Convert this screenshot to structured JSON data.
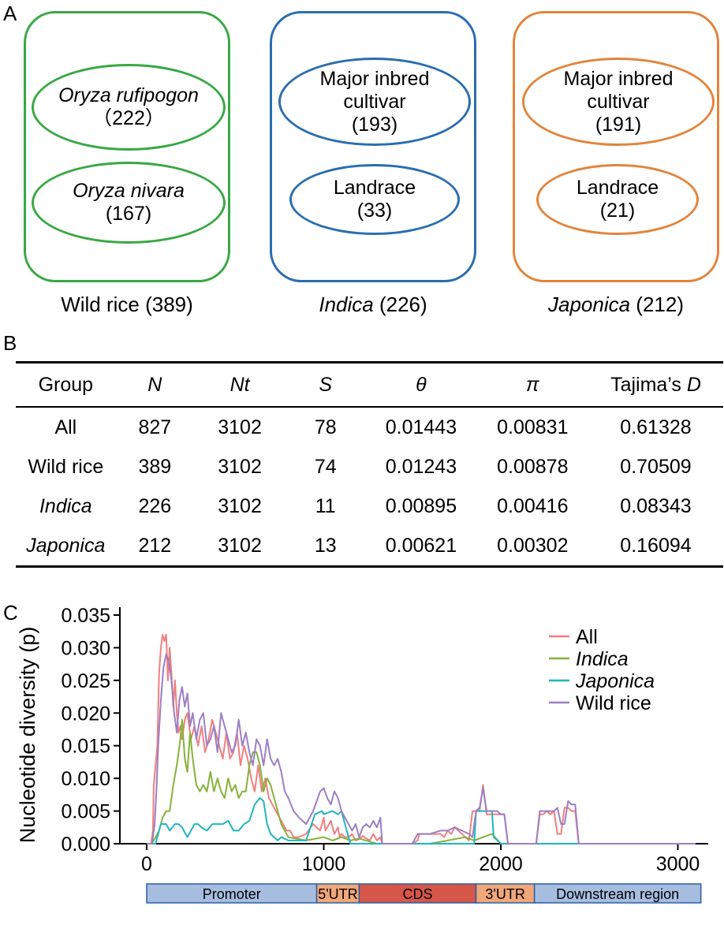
{
  "panel_a": {
    "letter": "A",
    "groups": [
      {
        "label": "Wild rice (389)",
        "label_italic": "",
        "label_rest": "Wild rice (389)",
        "color": "#3aa845",
        "ovals": [
          {
            "line1": "Oryza rufipogon",
            "line1_italic": true,
            "line2": "（222）",
            "line3": ""
          },
          {
            "line1": "Oryza nivara",
            "line1_italic": true,
            "line2": "(167)",
            "line3": ""
          }
        ]
      },
      {
        "label": "Indica (226)",
        "label_italic": "Indica",
        "label_rest": " (226)",
        "color": "#2a6db0",
        "ovals": [
          {
            "line1": "Major inbred",
            "line1_italic": false,
            "line2": "cultivar",
            "line3": "(193)"
          },
          {
            "line1": "Landrace",
            "line1_italic": false,
            "line2": "(33)",
            "line3": ""
          }
        ]
      },
      {
        "label": "Japonica (212)",
        "label_italic": "Japonica",
        "label_rest": " (212)",
        "color": "#e2843c",
        "ovals": [
          {
            "line1": "Major inbred",
            "line1_italic": false,
            "line2": "cultivar",
            "line3": "(191)"
          },
          {
            "line1": "Landrace",
            "line1_italic": false,
            "line2": "(21)",
            "line3": ""
          }
        ]
      }
    ]
  },
  "panel_b": {
    "letter": "B",
    "headers": [
      "Group",
      "N",
      "Nt",
      "S",
      "θ",
      "π",
      "Tajima’s D"
    ],
    "rows": [
      {
        "group": "All",
        "italic": false,
        "n": "827",
        "nt": "3102",
        "s": "78",
        "theta": "0.01443",
        "pi": "0.00831",
        "tajima": "0.61328"
      },
      {
        "group": "Wild rice",
        "italic": false,
        "n": "389",
        "nt": "3102",
        "s": "74",
        "theta": "0.01243",
        "pi": "0.00878",
        "tajima": "0.70509"
      },
      {
        "group": "Indica",
        "italic": true,
        "n": "226",
        "nt": "3102",
        "s": "11",
        "theta": "0.00895",
        "pi": "0.00416",
        "tajima": "0.08343"
      },
      {
        "group": "Japonica",
        "italic": true,
        "n": "212",
        "nt": "3102",
        "s": "13",
        "theta": "0.00621",
        "pi": "0.00302",
        "tajima": "0.16094"
      }
    ]
  },
  "chart_data": {
    "type": "line",
    "panel_letter": "C",
    "ylabel": "Nucleotide diversity (p)",
    "xlabel": "",
    "xlim": [
      0,
      3200
    ],
    "ylim": [
      0,
      0.035
    ],
    "xticks": [
      0,
      1000,
      2000,
      3000
    ],
    "yticks": [
      0.0,
      0.005,
      0.01,
      0.015,
      0.02,
      0.025,
      0.03,
      0.035
    ],
    "ytick_labels": [
      "0.000",
      "0.005",
      "0.010",
      "0.015",
      "0.020",
      "0.025",
      "0.030",
      "0.035"
    ],
    "grid": false,
    "legend_position": "top-right",
    "series": [
      {
        "name": "All",
        "italic": false,
        "color": "#f07f7f",
        "x": [
          0,
          25,
          35,
          40,
          50,
          60,
          70,
          80,
          90,
          100,
          110,
          120,
          130,
          140,
          150,
          160,
          170,
          180,
          190,
          200,
          215,
          230,
          250,
          270,
          290,
          310,
          330,
          350,
          370,
          390,
          410,
          430,
          450,
          470,
          490,
          510,
          530,
          550,
          570,
          590,
          610,
          630,
          650,
          670,
          690,
          710,
          730,
          750,
          770,
          790,
          810,
          830,
          860,
          900,
          940,
          980,
          1000,
          1010,
          1020,
          1040,
          1060,
          1080,
          1090,
          1100,
          1120,
          1140,
          1160,
          1180,
          1200,
          1220,
          1240,
          1260,
          1280,
          1300,
          1320,
          1330,
          1500,
          1530,
          1540,
          1600,
          1660,
          1680,
          1700,
          1720,
          1740,
          1760,
          1780,
          1800,
          1820,
          1840,
          1860,
          1880,
          1900,
          1920,
          1950,
          1980,
          2000,
          2020,
          2040,
          2200,
          2220,
          2240,
          2260,
          2280,
          2300,
          2320,
          2340,
          2360,
          2380,
          2400,
          2420,
          2440,
          3100
        ],
        "y": [
          0,
          0,
          0.002,
          0.009,
          0.012,
          0.015,
          0.026,
          0.03,
          0.032,
          0.031,
          0.032,
          0.025,
          0.03,
          0.026,
          0.021,
          0.025,
          0.02,
          0.017,
          0.018,
          0.016,
          0.019,
          0.02,
          0.016,
          0.018,
          0.015,
          0.018,
          0.014,
          0.016,
          0.019,
          0.017,
          0.015,
          0.013,
          0.017,
          0.013,
          0.014,
          0.017,
          0.012,
          0.015,
          0.013,
          0.01,
          0.008,
          0.012,
          0.008,
          0.01,
          0.007,
          0.006,
          0.005,
          0.004,
          0.003,
          0.002,
          0.002,
          0.001,
          0.001,
          0.0015,
          0.003,
          0.002,
          0.004,
          0.002,
          0.0025,
          0.0035,
          0.0015,
          0.0025,
          0.001,
          0.0015,
          0.001,
          0.001,
          0.0015,
          0.0005,
          0.0007,
          0.0012,
          0.0008,
          0.0005,
          0.0015,
          0.0005,
          0.001,
          0,
          0,
          0.0005,
          0.0015,
          0.0015,
          0.0015,
          0.001,
          0.002,
          0.0015,
          0.0025,
          0.002,
          0.0015,
          0.001,
          0.0005,
          0.005,
          0.005,
          0.005,
          0.009,
          0.0045,
          0.0045,
          0.0045,
          0.0045,
          0.0045,
          0,
          0,
          0.0045,
          0.0045,
          0.005,
          0.0045,
          0.005,
          0.0015,
          0.0015,
          0.0055,
          0.0055,
          0.005,
          0.005,
          0,
          0
        ]
      },
      {
        "name": "Indica",
        "italic": true,
        "color": "#86b23a",
        "x": [
          0,
          30,
          50,
          70,
          90,
          110,
          130,
          150,
          170,
          190,
          200,
          215,
          230,
          245,
          260,
          280,
          300,
          320,
          340,
          360,
          380,
          400,
          420,
          440,
          460,
          480,
          500,
          520,
          540,
          560,
          580,
          600,
          620,
          640,
          660,
          680,
          700,
          720,
          740,
          760,
          780,
          800,
          900,
          1000,
          1050,
          1100,
          1150,
          1200,
          1300,
          1600,
          1700,
          1800,
          1850,
          1900,
          1950,
          2000,
          3100
        ],
        "y": [
          0,
          0,
          0.001,
          0.002,
          0.004,
          0.005,
          0.005,
          0.009,
          0.012,
          0.016,
          0.019,
          0.013,
          0.011,
          0.017,
          0.013,
          0.009,
          0.008,
          0.009,
          0.008,
          0.011,
          0.008,
          0.01,
          0.008,
          0.007,
          0.01,
          0.008,
          0.009,
          0.007,
          0.008,
          0.008,
          0.012,
          0.014,
          0.014,
          0.012,
          0.008,
          0.01,
          0.009,
          0.007,
          0.005,
          0.003,
          0.002,
          0.001,
          0.0005,
          0.001,
          0.0005,
          0.001,
          0.0005,
          0.0008,
          0,
          0,
          0.0005,
          0.001,
          0.0005,
          0.001,
          0.0015,
          0,
          0
        ]
      },
      {
        "name": "Japonica",
        "italic": true,
        "color": "#1fb5bd",
        "x": [
          0,
          50,
          70,
          80,
          110,
          130,
          160,
          180,
          200,
          230,
          250,
          270,
          290,
          310,
          340,
          370,
          400,
          430,
          460,
          490,
          520,
          550,
          580,
          610,
          640,
          660,
          680,
          700,
          720,
          740,
          760,
          800,
          850,
          900,
          950,
          990,
          1000,
          1050,
          1080,
          1100,
          1120,
          1150,
          1850,
          1860,
          1900,
          1950,
          1960,
          2000,
          3100
        ],
        "y": [
          0,
          0,
          0.002,
          0.003,
          0.003,
          0.002,
          0.003,
          0.003,
          0.0025,
          0.001,
          0.002,
          0.003,
          0.003,
          0.0025,
          0.002,
          0.003,
          0.003,
          0.003,
          0.0035,
          0.002,
          0.002,
          0.003,
          0.0035,
          0.006,
          0.007,
          0.0065,
          0.003,
          0.0015,
          0.001,
          0.0005,
          0.001,
          0.0005,
          0.0005,
          0.0005,
          0.0045,
          0.005,
          0.0045,
          0.005,
          0.0045,
          0.005,
          0.003,
          0,
          0,
          0.005,
          0.005,
          0.005,
          0.001,
          0,
          0
        ]
      },
      {
        "name": "Wild rice",
        "italic": false,
        "color": "#9b7fc4",
        "x": [
          0,
          30,
          45,
          55,
          65,
          80,
          95,
          110,
          125,
          140,
          155,
          170,
          185,
          200,
          215,
          230,
          245,
          260,
          280,
          300,
          320,
          340,
          360,
          380,
          400,
          420,
          440,
          460,
          480,
          500,
          520,
          540,
          560,
          580,
          600,
          620,
          640,
          660,
          680,
          700,
          720,
          740,
          760,
          780,
          800,
          830,
          860,
          900,
          940,
          980,
          1000,
          1020,
          1040,
          1060,
          1080,
          1100,
          1120,
          1140,
          1160,
          1180,
          1200,
          1220,
          1240,
          1260,
          1280,
          1300,
          1320,
          1330,
          1500,
          1530,
          1600,
          1660,
          1700,
          1740,
          1780,
          1820,
          1840,
          1860,
          1880,
          1900,
          1920,
          1950,
          1980,
          2000,
          2020,
          2040,
          2200,
          2220,
          2260,
          2300,
          2320,
          2340,
          2360,
          2380,
          2400,
          2420,
          2440,
          3100
        ],
        "y": [
          0,
          0,
          0.003,
          0.008,
          0.015,
          0.022,
          0.027,
          0.029,
          0.028,
          0.025,
          0.02,
          0.017,
          0.022,
          0.024,
          0.021,
          0.023,
          0.018,
          0.02,
          0.016,
          0.019,
          0.02,
          0.015,
          0.016,
          0.018,
          0.014,
          0.02,
          0.018,
          0.016,
          0.014,
          0.015,
          0.019,
          0.015,
          0.017,
          0.014,
          0.012,
          0.016,
          0.015,
          0.012,
          0.016,
          0.013,
          0.012,
          0.013,
          0.011,
          0.008,
          0.007,
          0.005,
          0.004,
          0.003,
          0.005,
          0.008,
          0.0085,
          0.007,
          0.006,
          0.008,
          0.007,
          0.005,
          0.004,
          0.003,
          0.002,
          0.003,
          0.001,
          0.0025,
          0.003,
          0.0025,
          0.0035,
          0.0025,
          0.004,
          0,
          0,
          0.0015,
          0.0015,
          0.002,
          0.002,
          0.0025,
          0.002,
          0.0015,
          0.001,
          0.005,
          0.0055,
          0.0085,
          0.005,
          0.005,
          0.005,
          0.0045,
          0.0045,
          0,
          0,
          0.005,
          0.005,
          0.005,
          0.0055,
          0.003,
          0.003,
          0.0065,
          0.006,
          0.006,
          0,
          0
        ]
      }
    ],
    "gene_regions": [
      {
        "label": "Promoter",
        "start": 0,
        "end": 960,
        "color": "#a7bde0"
      },
      {
        "label": "5'UTR",
        "start": 960,
        "end": 1200,
        "color": "#f0a77a"
      },
      {
        "label": "CDS",
        "start": 1200,
        "end": 1860,
        "color": "#d6564a"
      },
      {
        "label": "3'UTR",
        "start": 1860,
        "end": 2190,
        "color": "#f0a77a"
      },
      {
        "label": "Downstream region",
        "start": 2190,
        "end": 3130,
        "color": "#a7bde0"
      }
    ]
  }
}
